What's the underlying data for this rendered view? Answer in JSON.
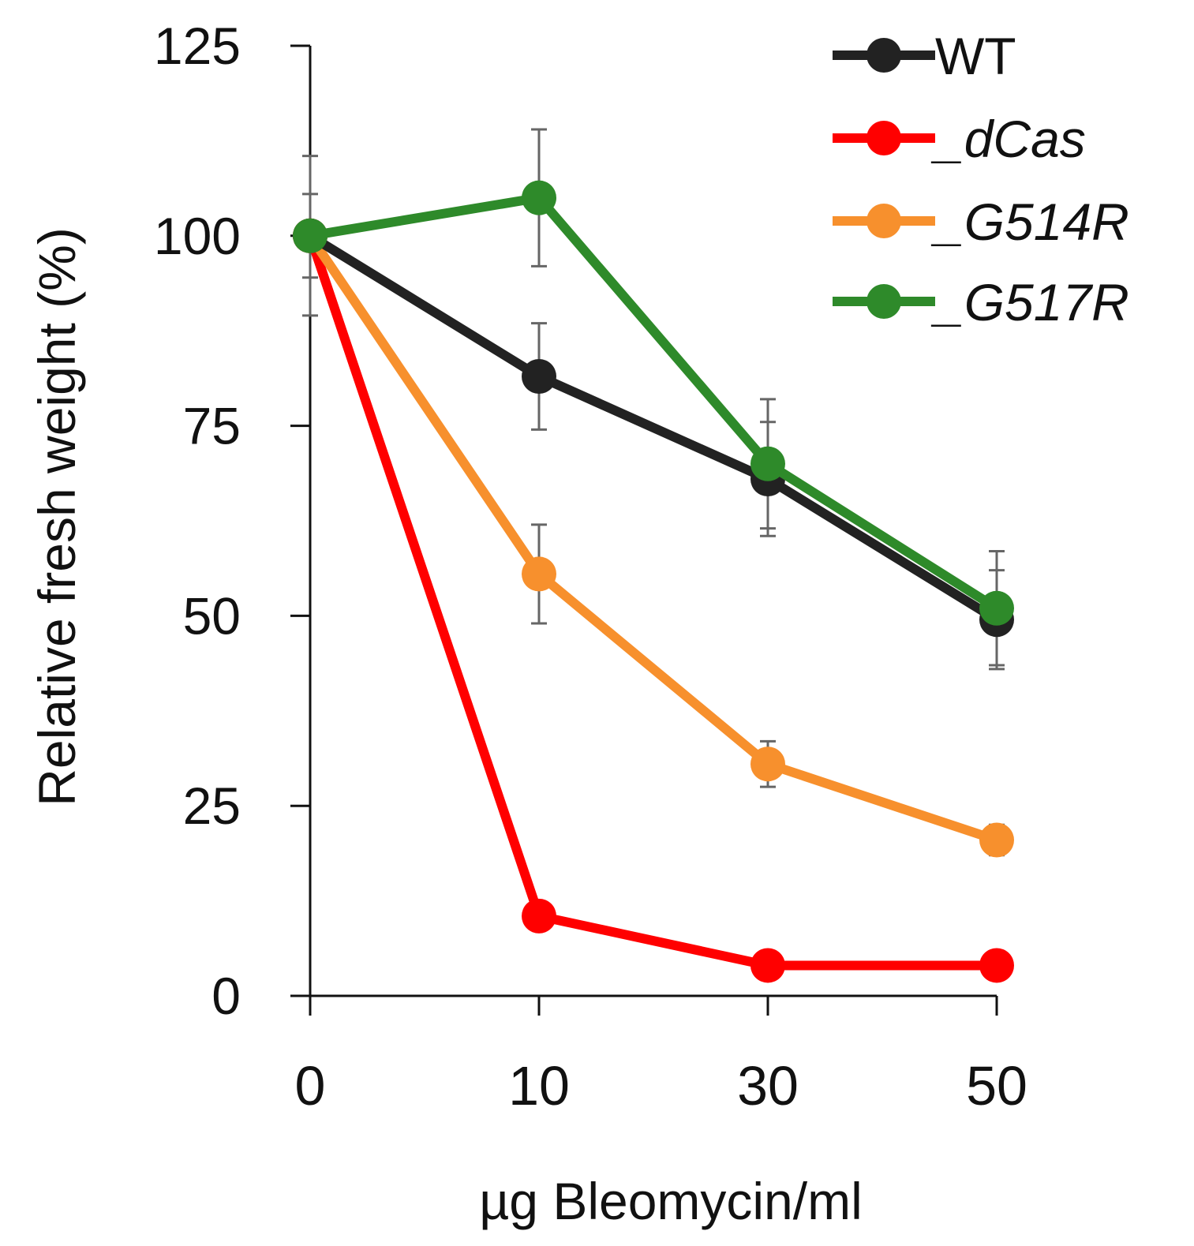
{
  "chart_data": {
    "type": "line",
    "title": "",
    "xlabel": "µg Bleomycin/ml",
    "ylabel": "Relative fresh weight (%)",
    "categories": [
      "0",
      "10",
      "30",
      "50"
    ],
    "ylim": [
      0,
      125
    ],
    "yticks": [
      0,
      25,
      50,
      75,
      100,
      125
    ],
    "grid": false,
    "legend_position": "top-right",
    "series": [
      {
        "name": "WT",
        "color": "#222222",
        "italic": false,
        "values": [
          100,
          81.5,
          68,
          49.5
        ],
        "errors": [
          10.5,
          7,
          7.5,
          6.5
        ]
      },
      {
        "name": "_dCas",
        "color": "#ff0000",
        "italic": true,
        "values": [
          100,
          10.5,
          4,
          4
        ],
        "errors": [
          0,
          0,
          0,
          0
        ]
      },
      {
        "name": "_G514R",
        "color": "#f7902d",
        "italic": true,
        "values": [
          100,
          55.5,
          30.5,
          20.5
        ],
        "errors": [
          0,
          6.5,
          3,
          2
        ]
      },
      {
        "name": "_G517R",
        "color": "#2e8a2a",
        "italic": true,
        "values": [
          100,
          105,
          70,
          51
        ],
        "errors": [
          5.5,
          9,
          8.5,
          7.5
        ]
      }
    ]
  }
}
